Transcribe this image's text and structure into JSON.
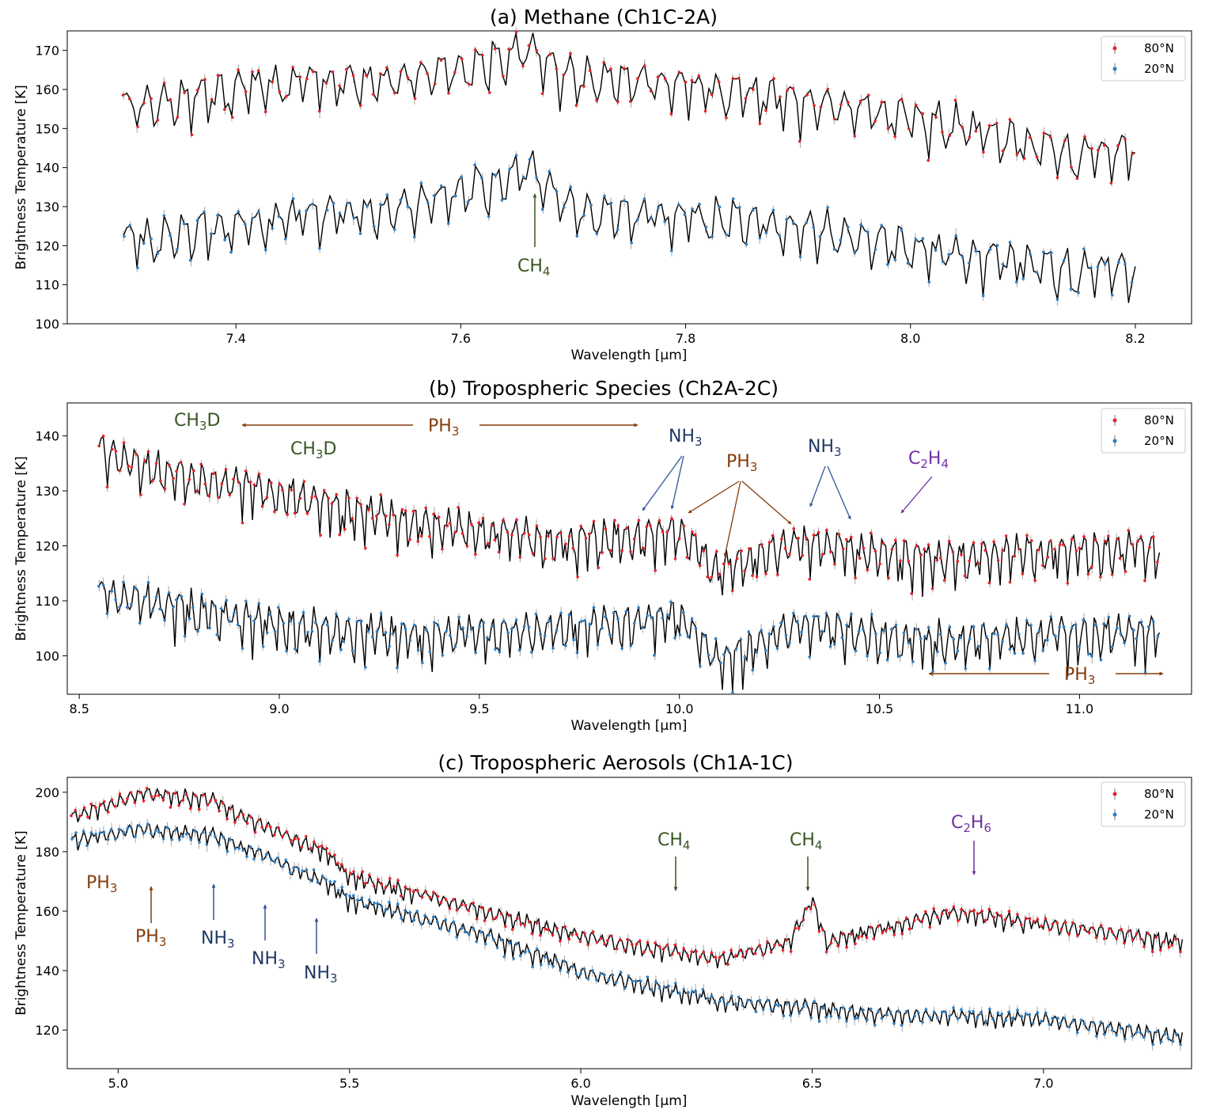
{
  "chart_data": [
    {
      "type": "line",
      "title": "(a) Methane (Ch1C-2A)",
      "xlabel": "Wavelength [μm]",
      "ylabel": "Brightness Temperature [K]",
      "xlim": [
        7.25,
        8.25
      ],
      "ylim": [
        100,
        175
      ],
      "xticks": [
        7.4,
        7.6,
        7.8,
        8.0,
        8.2
      ],
      "yticks": [
        100,
        110,
        120,
        130,
        140,
        150,
        160,
        170
      ],
      "xtick_labels": [
        "7.4",
        "7.6",
        "7.8",
        "8.0",
        "8.2"
      ],
      "ytick_labels": [
        "100",
        "110",
        "120",
        "130",
        "140",
        "150",
        "160",
        "170"
      ],
      "legend_position": "top-right",
      "legend": [
        "80°N",
        "20°N"
      ],
      "series": [
        {
          "name": "80°N",
          "color": "#e8222a",
          "x_range": [
            7.3,
            8.2
          ],
          "baseline": [
            [
              7.3,
              156
            ],
            [
              7.42,
              162
            ],
            [
              7.55,
              163
            ],
            [
              7.66,
              171
            ],
            [
              7.7,
              164
            ],
            [
              7.85,
              160
            ],
            [
              7.95,
              156
            ],
            [
              8.05,
              151
            ],
            [
              8.15,
              144
            ],
            [
              8.2,
              146
            ]
          ],
          "amplitude": 9
        },
        {
          "name": "20°N",
          "color": "#2e7ec2",
          "x_range": [
            7.3,
            8.2
          ],
          "baseline": [
            [
              7.3,
              122
            ],
            [
              7.45,
              128
            ],
            [
              7.55,
              130
            ],
            [
              7.66,
              140
            ],
            [
              7.7,
              130
            ],
            [
              7.85,
              127
            ],
            [
              7.95,
              123
            ],
            [
              8.05,
              118
            ],
            [
              8.15,
              114
            ],
            [
              8.2,
              115
            ]
          ],
          "amplitude": 9
        }
      ],
      "annotations": [
        {
          "text": "CH",
          "sub": "4",
          "color": "#375623",
          "arrow": "up"
        }
      ]
    },
    {
      "type": "line",
      "title": "(b) Tropospheric Species (Ch2A-2C)",
      "xlabel": "Wavelength [μm]",
      "ylabel": "Brightness Temperature [K]",
      "xlim": [
        8.47,
        11.28
      ],
      "ylim": [
        93,
        146
      ],
      "xticks": [
        8.5,
        9.0,
        9.5,
        10.0,
        10.5,
        11.0
      ],
      "yticks": [
        100,
        110,
        120,
        130,
        140
      ],
      "xtick_labels": [
        "8.5",
        "9.0",
        "9.5",
        "10.0",
        "10.5",
        "11.0"
      ],
      "ytick_labels": [
        "100",
        "110",
        "120",
        "130",
        "140"
      ],
      "legend_position": "top-right",
      "legend": [
        "80°N",
        "20°N"
      ],
      "series": [
        {
          "name": "80°N",
          "color": "#e8222a",
          "x_range": [
            8.55,
            11.2
          ],
          "baseline": [
            [
              8.55,
              138
            ],
            [
              8.7,
              134
            ],
            [
              9.0,
              130
            ],
            [
              9.3,
              125
            ],
            [
              9.7,
              121
            ],
            [
              10.0,
              123
            ],
            [
              10.1,
              116
            ],
            [
              10.3,
              121
            ],
            [
              10.6,
              118
            ],
            [
              11.2,
              120
            ]
          ],
          "amplitude": 6
        },
        {
          "name": "20°N",
          "color": "#2e7ec2",
          "x_range": [
            8.55,
            11.2
          ],
          "baseline": [
            [
              8.55,
              112
            ],
            [
              8.7,
              110
            ],
            [
              9.0,
              106
            ],
            [
              9.3,
              104
            ],
            [
              9.7,
              105
            ],
            [
              10.0,
              108
            ],
            [
              10.1,
              99
            ],
            [
              10.3,
              106
            ],
            [
              10.6,
              103
            ],
            [
              11.2,
              105
            ]
          ],
          "amplitude": 6
        }
      ],
      "annotations": [
        {
          "text": "CH",
          "sub": "3",
          "tail": "D",
          "color": "#375623"
        },
        {
          "text": "CH",
          "sub": "3",
          "tail": "D",
          "color": "#375623"
        },
        {
          "text": "PH",
          "sub": "3",
          "color": "#843c0c",
          "arrow": "both"
        },
        {
          "text": "NH",
          "sub": "3",
          "color": "#203864"
        },
        {
          "text": "PH",
          "sub": "3",
          "color": "#843c0c"
        },
        {
          "text": "NH",
          "sub": "3",
          "color": "#203864"
        },
        {
          "text": "C",
          "sub": "2",
          "tail": "H",
          "sub2": "4",
          "color": "#7030a0"
        },
        {
          "text": "PH",
          "sub": "3",
          "color": "#843c0c",
          "arrow": "both"
        }
      ]
    },
    {
      "type": "line",
      "title": "(c) Tropospheric Aerosols (Ch1A-1C)",
      "xlabel": "Wavelength [μm]",
      "ylabel": "Brightness Temperature [K]",
      "xlim": [
        4.89,
        7.32
      ],
      "ylim": [
        107,
        205
      ],
      "xticks": [
        5.0,
        5.5,
        6.0,
        6.5,
        7.0
      ],
      "yticks": [
        120,
        140,
        160,
        180,
        200
      ],
      "xtick_labels": [
        "5.0",
        "5.5",
        "6.0",
        "6.5",
        "7.0"
      ],
      "ytick_labels": [
        "120",
        "140",
        "160",
        "180",
        "200"
      ],
      "legend_position": "top-right",
      "legend": [
        "80°N",
        "20°N"
      ],
      "series": [
        {
          "name": "80°N",
          "color": "#e8222a",
          "x_range": [
            4.9,
            7.3
          ],
          "baseline": [
            [
              4.9,
              192
            ],
            [
              5.05,
              200
            ],
            [
              5.2,
              198
            ],
            [
              5.3,
              190
            ],
            [
              5.45,
              180
            ],
            [
              5.5,
              172
            ],
            [
              5.8,
              160
            ],
            [
              6.0,
              152
            ],
            [
              6.3,
              144
            ],
            [
              6.45,
              150
            ],
            [
              6.5,
              164
            ],
            [
              6.53,
              150
            ],
            [
              6.8,
              160
            ],
            [
              7.0,
              156
            ],
            [
              7.3,
              150
            ]
          ],
          "amplitude": 4
        },
        {
          "name": "20°N",
          "color": "#2e7ec2",
          "x_range": [
            4.9,
            7.3
          ],
          "baseline": [
            [
              4.9,
              184
            ],
            [
              5.05,
              188
            ],
            [
              5.2,
              186
            ],
            [
              5.3,
              180
            ],
            [
              5.45,
              170
            ],
            [
              5.5,
              164
            ],
            [
              5.8,
              152
            ],
            [
              6.0,
              140
            ],
            [
              6.3,
              130
            ],
            [
              6.5,
              128
            ],
            [
              6.6,
              126
            ],
            [
              7.0,
              124
            ],
            [
              7.3,
              118
            ]
          ],
          "amplitude": 4
        }
      ],
      "annotations": [
        {
          "text": "PH",
          "sub": "3",
          "color": "#843c0c"
        },
        {
          "text": "PH",
          "sub": "3",
          "color": "#843c0c",
          "arrow": "up"
        },
        {
          "text": "NH",
          "sub": "3",
          "color": "#203864",
          "arrow": "up"
        },
        {
          "text": "NH",
          "sub": "3",
          "color": "#203864",
          "arrow": "up"
        },
        {
          "text": "NH",
          "sub": "3",
          "color": "#203864",
          "arrow": "up"
        },
        {
          "text": "CH",
          "sub": "4",
          "color": "#375623",
          "arrow": "down"
        },
        {
          "text": "CH",
          "sub": "4",
          "color": "#375623",
          "arrow": "down"
        },
        {
          "text": "C",
          "sub": "2",
          "tail": "H",
          "sub2": "6",
          "color": "#7030a0",
          "arrow": "down"
        }
      ]
    }
  ],
  "colors": {
    "red_series": "#e8222a",
    "blue_series": "#2e7ec2",
    "model_line": "#000000",
    "error_bars": "#a6a6a6",
    "ch_green": "#375623",
    "ph_brown": "#843c0c",
    "nh_blue": "#203864",
    "arrow_blue": "#2f5597",
    "c2_purple": "#7030a0"
  }
}
